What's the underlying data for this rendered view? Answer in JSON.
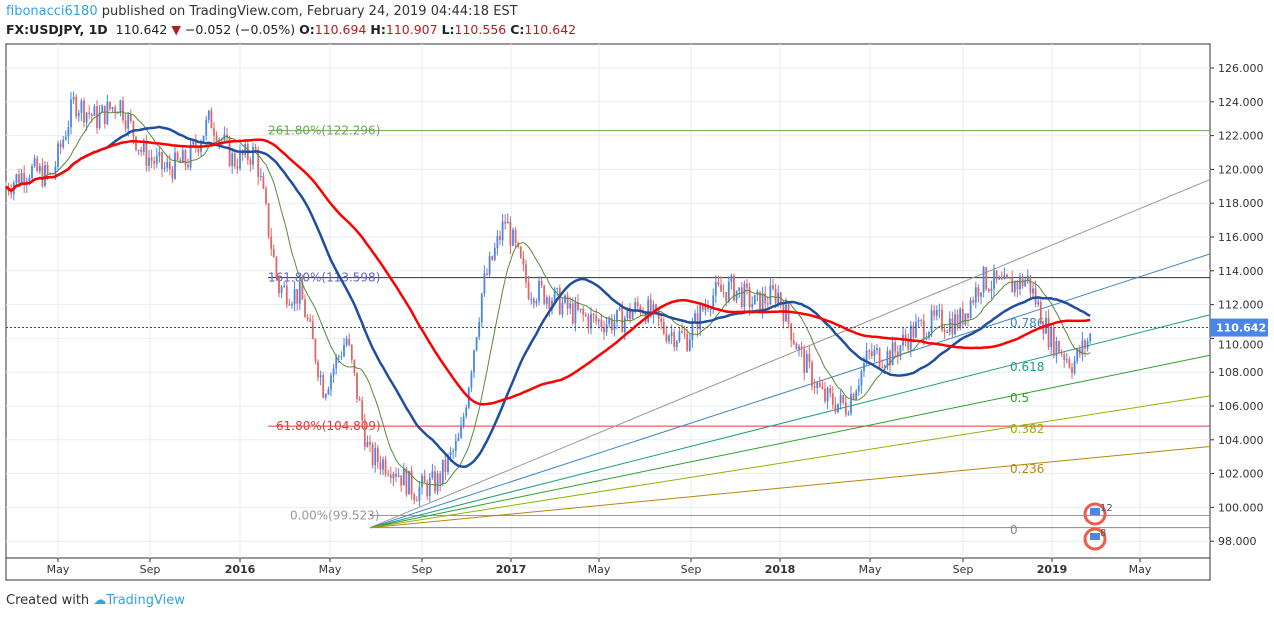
{
  "header": {
    "author": "fibonacci6180",
    "published": "published on TradingView.com, February 24, 2019 04:44:18 EST"
  },
  "ticker": {
    "symbol": "FX:USDJPY, 1D",
    "last": "110.642",
    "change": "−0.052 (−0.05%)",
    "o_label": "O:",
    "o": "110.694",
    "h_label": "H:",
    "h": "110.907",
    "l_label": "L:",
    "l": "110.556",
    "c_label": "C:",
    "c": "110.642"
  },
  "footer": {
    "created": "Created with",
    "brand": "TradingView"
  },
  "colors": {
    "up": "#4a86e8",
    "down": "#e06666",
    "ma_long": "#ff0000",
    "ma_mid": "#1f4e9e",
    "ma_short": "#5a8a3a"
  },
  "chart_data": {
    "type": "candlestick",
    "ylim": [
      97,
      127.5
    ],
    "yticks": [
      "126.000",
      "124.000",
      "122.000",
      "120.000",
      "118.000",
      "116.000",
      "114.000",
      "112.000",
      "110.000",
      "108.000",
      "106.000",
      "104.000",
      "102.000",
      "100.000",
      "98.000"
    ],
    "xticks": [
      "May",
      "Sep",
      "2016",
      "May",
      "Sep",
      "2017",
      "May",
      "Sep",
      "2018",
      "May",
      "Sep",
      "2019",
      "May"
    ],
    "last_price_label": "110.642",
    "monthly_close_approx": {
      "start": "2015-02",
      "values": [
        119,
        120,
        119.5,
        124,
        123,
        124,
        121,
        120,
        120.5,
        123,
        120.5,
        121,
        113,
        112.5,
        107,
        110,
        103,
        102.5,
        101,
        101.5,
        104,
        113,
        117,
        113,
        112.5,
        111.5,
        111,
        111,
        112,
        110.5,
        110,
        112.5,
        113,
        112,
        112.7,
        109,
        106.5,
        106,
        109,
        109,
        110.5,
        111,
        111,
        113.5,
        113,
        113.5,
        110,
        108.5,
        110.6
      ]
    },
    "fib_levels": [
      {
        "label": "261.80%(122.296)",
        "value": 122.296,
        "color": "#6aa84f"
      },
      {
        "label": "161.80%(113.598)",
        "value": 113.598,
        "color": "#6060d0"
      },
      {
        "label": "61.80%(104.809)",
        "value": 104.809,
        "color": "#e53935"
      },
      {
        "label": "0.00%(99.523)",
        "value": 99.523,
        "color": "#999999"
      }
    ],
    "fan": {
      "origin_value": 98.8,
      "lines": [
        {
          "label": "",
          "end": 119.4,
          "color": "#999999"
        },
        {
          "label": "0.786",
          "end": 115,
          "color": "#3d85c6"
        },
        {
          "label": "0.618",
          "end": 111.4,
          "color": "#1e9e7e"
        },
        {
          "label": "0.5",
          "end": 109,
          "color": "#2ca02c"
        },
        {
          "label": "0.382",
          "end": 106.6,
          "color": "#8db600"
        },
        {
          "label": "0.236",
          "end": 103.6,
          "color": "#b8860b"
        },
        {
          "label": "0",
          "end": 98.8,
          "color": "#888888"
        }
      ]
    },
    "events": [
      {
        "label": "12"
      },
      {
        "label": "8"
      }
    ]
  }
}
